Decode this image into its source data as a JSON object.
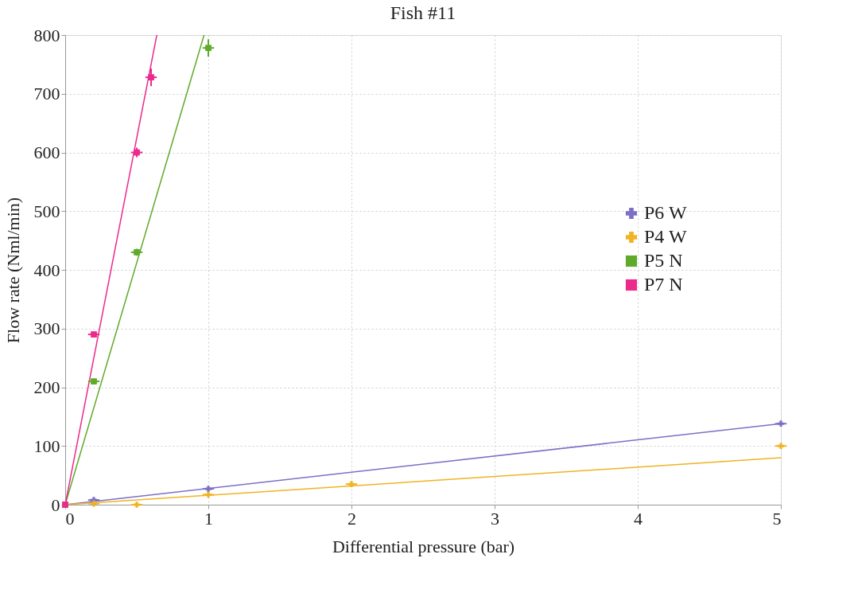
{
  "chart_data": {
    "type": "scatter",
    "title": "Fish #11",
    "xlabel": "Differential pressure (bar)",
    "ylabel": "Flow rate (Nml/min)",
    "xlim": [
      0,
      5
    ],
    "ylim": [
      0,
      800
    ],
    "xticks": [
      0,
      1,
      2,
      3,
      4,
      5
    ],
    "yticks": [
      0,
      100,
      200,
      300,
      400,
      500,
      600,
      700,
      800
    ],
    "grid": true,
    "legend": "right",
    "series": [
      {
        "name": "P6 W",
        "color": "#7b6fc8",
        "marker": "cross",
        "x": [
          0.2,
          1,
          5
        ],
        "values": [
          8,
          27,
          138
        ],
        "xerrors": [
          0.04,
          0.04,
          0.04
        ],
        "errors": [
          3,
          3,
          3
        ]
      },
      {
        "name": "P4 W",
        "color": "#f0b323",
        "marker": "cross",
        "x": [
          0.2,
          0.5,
          1,
          2,
          5
        ],
        "values": [
          2,
          0,
          17,
          35,
          100
        ],
        "xerrors": [
          0.04,
          0.04,
          0.04,
          0.04,
          0.04
        ],
        "errors": [
          3,
          3,
          3,
          3,
          3
        ]
      },
      {
        "name": "P5 N",
        "color": "#5faa2a",
        "marker": "square",
        "x": [
          0,
          0.2,
          0.5,
          1
        ],
        "values": [
          0,
          210,
          430,
          778
        ],
        "xerrors": [
          null,
          0.04,
          0.04,
          0.04
        ],
        "errors": [
          null,
          4,
          6,
          15
        ]
      },
      {
        "name": "P7 N",
        "color": "#ec2a8c",
        "marker": "square",
        "x": [
          0,
          0.2,
          0.5,
          0.6
        ],
        "values": [
          0,
          290,
          600,
          728
        ],
        "xerrors": [
          null,
          0.04,
          0.04,
          0.04
        ],
        "errors": [
          null,
          5,
          8,
          15
        ]
      },
      {
        "type": "line",
        "color": "#7b6fc8",
        "x": [
          0,
          5
        ],
        "values": [
          0,
          138
        ]
      },
      {
        "type": "line",
        "color": "#f0b323",
        "x": [
          0,
          5
        ],
        "values": [
          0,
          80
        ]
      },
      {
        "type": "line",
        "color": "#5faa2a",
        "x": [
          0,
          0.97
        ],
        "values": [
          0,
          800
        ]
      },
      {
        "type": "line",
        "color": "#ec2a8c",
        "x": [
          0,
          0.64
        ],
        "values": [
          0,
          800
        ]
      }
    ]
  }
}
